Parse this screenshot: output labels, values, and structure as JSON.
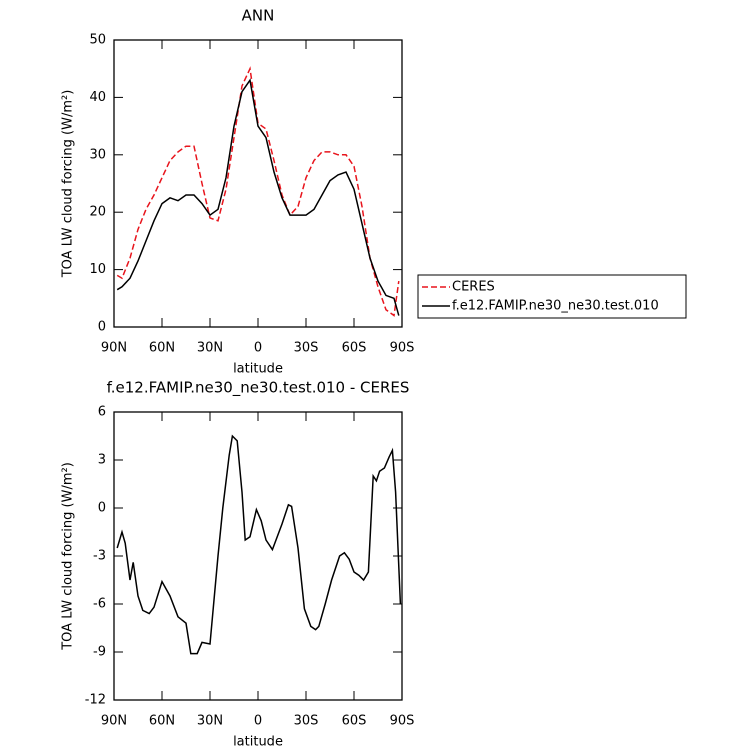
{
  "chart_data": [
    {
      "type": "line",
      "title": "ANN",
      "xlabel": "latitude",
      "ylabel": "TOA LW cloud forcing (W/m²)",
      "x": [
        88,
        85,
        80,
        75,
        70,
        65,
        60,
        55,
        50,
        45,
        40,
        35,
        30,
        25,
        20,
        15,
        10,
        5,
        0,
        -5,
        -10,
        -15,
        -20,
        -25,
        -30,
        -35,
        -40,
        -45,
        -50,
        -55,
        -60,
        -65,
        -70,
        -75,
        -80,
        -85,
        -88
      ],
      "series": [
        {
          "name": "CERES",
          "color": "#e8141c",
          "dash": "dashed",
          "values": [
            9,
            8.5,
            12,
            17,
            20.5,
            23,
            26,
            29,
            30.5,
            31.5,
            31.5,
            25,
            19,
            18.5,
            24,
            33,
            42,
            45,
            35.5,
            34.5,
            29,
            23,
            19.5,
            21,
            26,
            29,
            30.5,
            30.5,
            30,
            30,
            28,
            21,
            12,
            7,
            3,
            2,
            8
          ]
        },
        {
          "name": "f.e12.FAMIP.ne30_ne30.test.010",
          "color": "#000000",
          "dash": "solid",
          "values": [
            6.5,
            7,
            8.5,
            11.5,
            15,
            18.5,
            21.5,
            22.5,
            22,
            23,
            23,
            21.5,
            19.5,
            20.5,
            26,
            35,
            41,
            43,
            35,
            33,
            27,
            22.5,
            19.5,
            19.5,
            19.5,
            20.5,
            23,
            25.5,
            26.5,
            27,
            24,
            18,
            12,
            8,
            5.5,
            5,
            2
          ]
        }
      ],
      "xlim": [
        90,
        -90
      ],
      "xticks": [
        {
          "value": 90,
          "label": "90N"
        },
        {
          "value": 60,
          "label": "60N"
        },
        {
          "value": 30,
          "label": "30N"
        },
        0,
        {
          "value": -30,
          "label": "30S"
        },
        {
          "value": -60,
          "label": "60S"
        },
        {
          "value": -90,
          "label": "90S"
        }
      ],
      "ylim": [
        0,
        50
      ],
      "yticks": [
        0,
        10,
        20,
        30,
        40,
        50
      ],
      "legend": "right"
    },
    {
      "type": "line",
      "title": "f.e12.FAMIP.ne30_ne30.test.010 - CERES",
      "xlabel": "latitude",
      "ylabel": "TOA LW cloud forcing (W/m²)",
      "x": [
        88,
        85,
        83,
        80,
        78,
        75,
        72,
        68,
        65,
        60,
        55,
        50,
        45,
        42,
        38,
        35,
        30,
        25,
        22,
        18,
        16,
        13,
        10,
        8,
        5,
        1,
        -2,
        -5,
        -9,
        -15,
        -19,
        -21,
        -25,
        -29,
        -33,
        -36,
        -38,
        -42,
        -46,
        -51,
        -54,
        -57,
        -60,
        -63,
        -66,
        -69,
        -72,
        -74,
        -76,
        -79,
        -82,
        -84,
        -86,
        -89
      ],
      "series": [
        {
          "color": "#000000",
          "dash": "solid",
          "values": [
            -2.5,
            -1.5,
            -2.2,
            -4.5,
            -3.4,
            -5.5,
            -6.4,
            -6.6,
            -6.2,
            -4.6,
            -5.5,
            -6.8,
            -7.2,
            -9.1,
            -9.1,
            -8.4,
            -8.5,
            -3,
            0,
            3.3,
            4.5,
            4.2,
            1,
            -2,
            -1.8,
            -0.1,
            -0.8,
            -2,
            -2.6,
            -1,
            0.2,
            0.1,
            -2.5,
            -6.3,
            -7.4,
            -7.6,
            -7.4,
            -6,
            -4.5,
            -3,
            -2.8,
            -3.2,
            -4,
            -4.2,
            -4.5,
            -4,
            2,
            1.7,
            2.3,
            2.5,
            3.2,
            3.6,
            1,
            -6
          ]
        }
      ],
      "xlim": [
        90,
        -90
      ],
      "xticks": [
        {
          "value": 90,
          "label": "90N"
        },
        {
          "value": 60,
          "label": "60N"
        },
        {
          "value": 30,
          "label": "30N"
        },
        0,
        {
          "value": -30,
          "label": "30S"
        },
        {
          "value": -60,
          "label": "60S"
        },
        {
          "value": -90,
          "label": "90S"
        }
      ],
      "ylim": [
        -12,
        6
      ],
      "yticks": [
        -12,
        -9,
        -6,
        -3,
        0,
        3,
        6
      ]
    }
  ]
}
